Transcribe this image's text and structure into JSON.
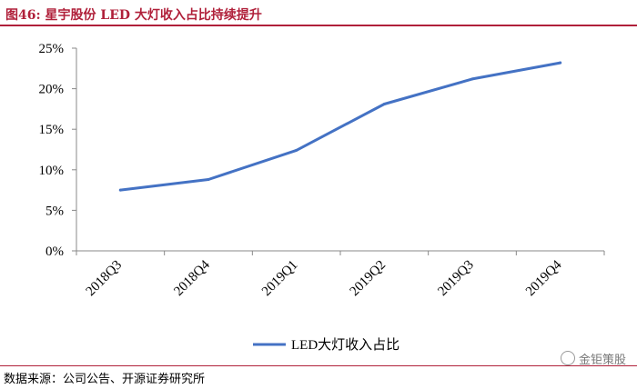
{
  "header": {
    "title": "图46: 星宇股份 LED 大灯收入占比持续提升"
  },
  "footer": {
    "source": "数据来源：公司公告、开源证券研究所"
  },
  "watermark": {
    "text": "金钜策股"
  },
  "colors": {
    "accent": "#b0203a",
    "series": "#4472c4",
    "axis": "#888888"
  },
  "chart_data": {
    "type": "line",
    "title": "",
    "xlabel": "",
    "ylabel": "",
    "categories": [
      "2018Q3",
      "2018Q4",
      "2019Q1",
      "2019Q2",
      "2019Q3",
      "2019Q4"
    ],
    "series": [
      {
        "name": "LED大灯收入占比",
        "values": [
          7.5,
          8.8,
          12.4,
          18.1,
          21.2,
          23.2
        ]
      }
    ],
    "ylim": [
      0,
      25
    ],
    "yticks": [
      "0%",
      "5%",
      "10%",
      "15%",
      "20%",
      "25%"
    ],
    "ytick_values": [
      0,
      5,
      10,
      15,
      20,
      25
    ],
    "legend_position": "bottom",
    "grid": false
  }
}
